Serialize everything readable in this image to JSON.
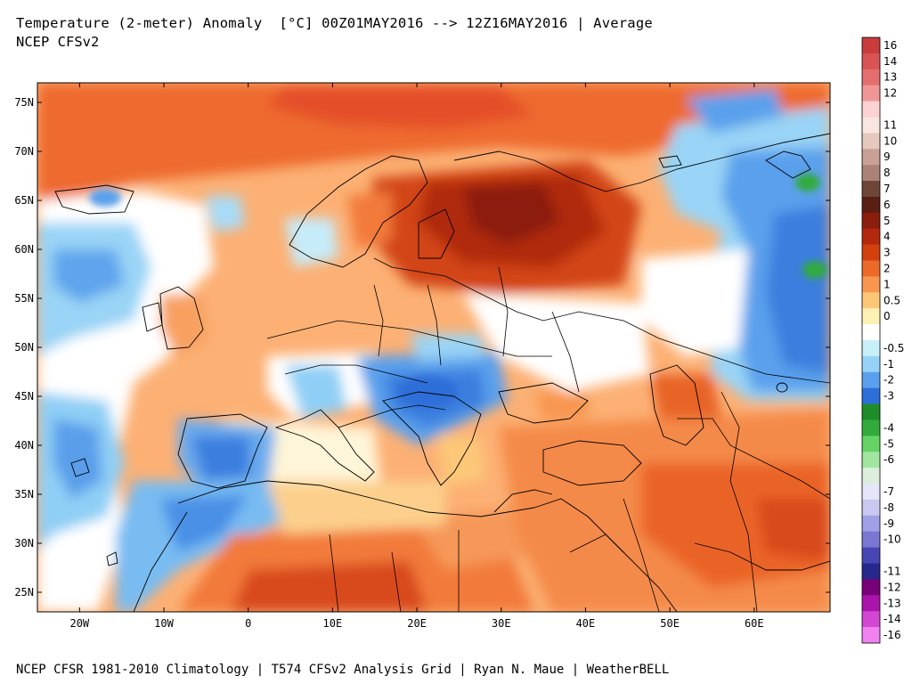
{
  "header": {
    "title": "Temperature (2-meter) Anomaly  [°C] 00Z01MAY2016 --> 12Z16MAY2016 | Average",
    "subtitle": "NCEP CFSv2"
  },
  "footer": {
    "credit": "NCEP CFSR 1981-2010 Climatology | T574 CFSv2 Analysis Grid | Ryan N. Maue | WeatherBELL"
  },
  "map": {
    "lon_range": [
      -25,
      69
    ],
    "lat_range": [
      23,
      77
    ],
    "lat_labels": [
      "75N",
      "70N",
      "65N",
      "60N",
      "55N",
      "50N",
      "45N",
      "40N",
      "35N",
      "30N",
      "25N"
    ],
    "lat_values": [
      75,
      70,
      65,
      60,
      55,
      50,
      45,
      40,
      35,
      30,
      25
    ],
    "lon_labels": [
      "20W",
      "10W",
      "0",
      "10E",
      "20E",
      "30E",
      "40E",
      "50E",
      "60E"
    ],
    "lon_values": [
      -20,
      -10,
      0,
      10,
      20,
      30,
      40,
      50,
      60
    ]
  },
  "colorbar": {
    "entries": [
      {
        "label": "16",
        "color": "#c83c3c"
      },
      {
        "label": "14",
        "color": "#d85454"
      },
      {
        "label": "13",
        "color": "#e46e6e"
      },
      {
        "label": "12",
        "color": "#f09696"
      },
      {
        "label": "",
        "color": "#fcd2d2"
      },
      {
        "label": "11",
        "color": "#fae6e0"
      },
      {
        "label": "10",
        "color": "#e6c8be"
      },
      {
        "label": "9",
        "color": "#c8a096"
      },
      {
        "label": "8",
        "color": "#aa8278"
      },
      {
        "label": "7",
        "color": "#6e4638"
      },
      {
        "label": "6",
        "color": "#5a1e12"
      },
      {
        "label": "5",
        "color": "#8c1e0e"
      },
      {
        "label": "4",
        "color": "#b4280e"
      },
      {
        "label": "3",
        "color": "#d2400e"
      },
      {
        "label": "2",
        "color": "#ec6a28"
      },
      {
        "label": "1",
        "color": "#f89650"
      },
      {
        "label": "0.5",
        "color": "#fcc878"
      },
      {
        "label": "0",
        "color": "#fff0b4"
      },
      {
        "label": "",
        "color": "#ffffff"
      },
      {
        "label": "-0.5",
        "color": "#c8f0fa"
      },
      {
        "label": "-1",
        "color": "#96d2f8"
      },
      {
        "label": "-2",
        "color": "#5aa0ec"
      },
      {
        "label": "-3",
        "color": "#2e6ed8"
      },
      {
        "label": "",
        "color": "#1e8c28"
      },
      {
        "label": "-4",
        "color": "#32aa3c"
      },
      {
        "label": "-5",
        "color": "#64d264"
      },
      {
        "label": "-6",
        "color": "#a0e6a0"
      },
      {
        "label": "",
        "color": "#dceedc"
      },
      {
        "label": "-7",
        "color": "#e6e6fa"
      },
      {
        "label": "-8",
        "color": "#c8c8f0"
      },
      {
        "label": "-9",
        "color": "#a0a0e6"
      },
      {
        "label": "-10",
        "color": "#7878d2"
      },
      {
        "label": "",
        "color": "#4646b4"
      },
      {
        "label": "-11",
        "color": "#28288c"
      },
      {
        "label": "-12",
        "color": "#780078"
      },
      {
        "label": "-13",
        "color": "#aa14aa"
      },
      {
        "label": "-14",
        "color": "#d246d2"
      },
      {
        "label": "-16",
        "color": "#f082f0"
      }
    ]
  }
}
